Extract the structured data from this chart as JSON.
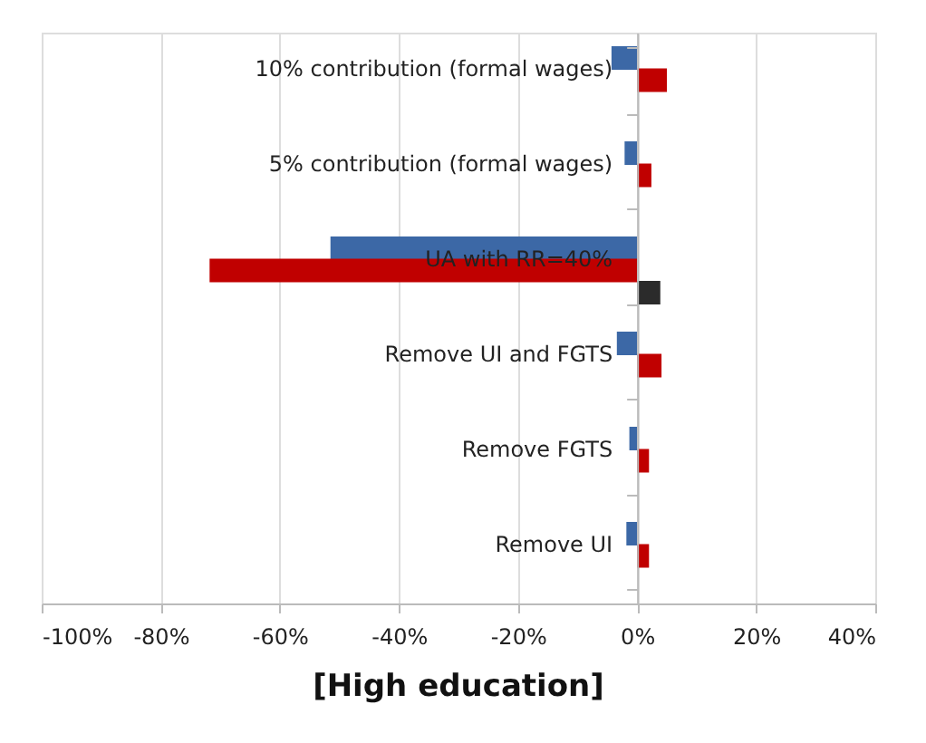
{
  "chart_data": {
    "type": "bar",
    "orientation": "horizontal",
    "title": "[High education]",
    "categories": [
      "10% contribution (formal wages)",
      "5% contribution (formal wages)",
      "UA with RR=40%",
      "Remove UI and FGTS",
      "Remove FGTS",
      "Remove UI"
    ],
    "series": [
      {
        "color": "#3c68a6",
        "values": [
          -4.3,
          -2.1,
          -51.5,
          -3.4,
          -1.3,
          -1.8
        ]
      },
      {
        "color": "#c00000",
        "values": [
          5,
          2.4,
          -71.8,
          4.1,
          2,
          2
        ]
      },
      {
        "color": "#2b2b2b",
        "values": [
          null,
          null,
          3.9,
          null,
          null,
          null
        ]
      }
    ],
    "xlim": [
      -100,
      40
    ],
    "xticks": [
      {
        "value": -100,
        "label": "-100%"
      },
      {
        "value": -80,
        "label": "-80%"
      },
      {
        "value": -60,
        "label": "-60%"
      },
      {
        "value": -40,
        "label": "-40%"
      },
      {
        "value": -20,
        "label": "-20%"
      },
      {
        "value": 0,
        "label": "0%"
      },
      {
        "value": 20,
        "label": "20%"
      },
      {
        "value": 40,
        "label": "40%"
      }
    ],
    "grid": "x"
  }
}
